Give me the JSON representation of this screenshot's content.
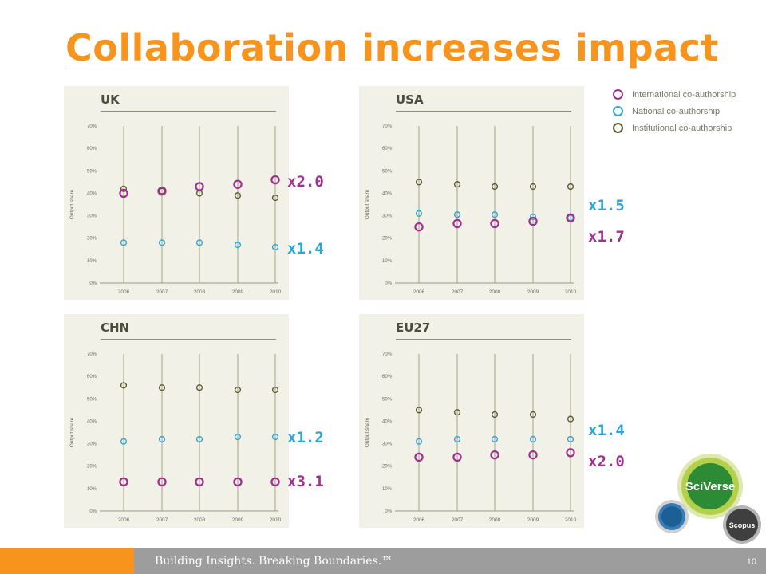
{
  "page": {
    "title": "Collaboration increases impact",
    "footer": "Building Insights. Breaking Boundaries.™",
    "page_number": "10"
  },
  "colors": {
    "international": "#a0308f",
    "national": "#29a7d6",
    "institutional": "#5f5a30",
    "accent": "#f7941d"
  },
  "legend": {
    "items": [
      {
        "label": "International co-authorship",
        "series": "international"
      },
      {
        "label": "National co-authorship",
        "series": "national"
      },
      {
        "label": "Institutional co-authorship",
        "series": "institutional"
      }
    ]
  },
  "logo": {
    "brand": "SciVerse",
    "sub": "Scopus",
    "colors": {
      "ring": "#b4cf49",
      "core": "#2d8a35",
      "blue": "#1a6aa0",
      "grey": "#888888",
      "dark": "#444444"
    }
  },
  "chart_data": [
    {
      "type": "scatter",
      "title": "UK",
      "ylabel": "Output share",
      "x": [
        "2006",
        "2007",
        "2008",
        "2009",
        "2010"
      ],
      "ylim": [
        0,
        70
      ],
      "yticks": [
        "0%",
        "10%",
        "20%",
        "30%",
        "40%",
        "50%",
        "60%",
        "70%"
      ],
      "series": [
        {
          "name": "International co-authorship",
          "key": "international",
          "values": [
            40,
            41,
            43,
            44,
            46
          ]
        },
        {
          "name": "National co-authorship",
          "key": "national",
          "values": [
            18,
            18,
            18,
            17,
            16
          ]
        },
        {
          "name": "Institutional co-authorship",
          "key": "institutional",
          "values": [
            42,
            41,
            40,
            39,
            38
          ]
        }
      ],
      "annotations": [
        {
          "text": "x2.0",
          "series": "international"
        },
        {
          "text": "x1.4",
          "series": "national"
        }
      ]
    },
    {
      "type": "scatter",
      "title": "USA",
      "ylabel": "Output share",
      "x": [
        "2006",
        "2007",
        "2008",
        "2009",
        "2010"
      ],
      "ylim": [
        0,
        70
      ],
      "yticks": [
        "0%",
        "10%",
        "20%",
        "30%",
        "40%",
        "50%",
        "60%",
        "70%"
      ],
      "series": [
        {
          "name": "International co-authorship",
          "key": "international",
          "values": [
            25,
            26.5,
            26.5,
            27.5,
            29
          ]
        },
        {
          "name": "National co-authorship",
          "key": "national",
          "values": [
            31,
            30.5,
            30.5,
            29.5,
            29
          ]
        },
        {
          "name": "Institutional co-authorship",
          "key": "institutional",
          "values": [
            45,
            44,
            43,
            43,
            43
          ]
        }
      ],
      "annotations": [
        {
          "text": "x1.5",
          "series": "national"
        },
        {
          "text": "x1.7",
          "series": "international"
        }
      ]
    },
    {
      "type": "scatter",
      "title": "CHN",
      "ylabel": "Output share",
      "x": [
        "2006",
        "2007",
        "2008",
        "2009",
        "2010"
      ],
      "ylim": [
        0,
        70
      ],
      "yticks": [
        "0%",
        "10%",
        "20%",
        "30%",
        "40%",
        "50%",
        "60%",
        "70%"
      ],
      "series": [
        {
          "name": "International co-authorship",
          "key": "international",
          "values": [
            13,
            13,
            13,
            13,
            13
          ]
        },
        {
          "name": "National co-authorship",
          "key": "national",
          "values": [
            31,
            32,
            32,
            33,
            33
          ]
        },
        {
          "name": "Institutional co-authorship",
          "key": "institutional",
          "values": [
            56,
            55,
            55,
            54,
            54
          ]
        }
      ],
      "annotations": [
        {
          "text": "x1.2",
          "series": "national"
        },
        {
          "text": "x3.1",
          "series": "international"
        }
      ]
    },
    {
      "type": "scatter",
      "title": "EU27",
      "ylabel": "Output share",
      "x": [
        "2006",
        "2007",
        "2008",
        "2009",
        "2010"
      ],
      "ylim": [
        0,
        70
      ],
      "yticks": [
        "0%",
        "10%",
        "20%",
        "30%",
        "40%",
        "50%",
        "60%",
        "70%"
      ],
      "series": [
        {
          "name": "International co-authorship",
          "key": "international",
          "values": [
            24,
            24,
            25,
            25,
            26
          ]
        },
        {
          "name": "National co-authorship",
          "key": "national",
          "values": [
            31,
            32,
            32,
            32,
            32
          ]
        },
        {
          "name": "Institutional co-authorship",
          "key": "institutional",
          "values": [
            45,
            44,
            43,
            43,
            41
          ]
        }
      ],
      "annotations": [
        {
          "text": "x1.4",
          "series": "national"
        },
        {
          "text": "x2.0",
          "series": "international"
        }
      ]
    }
  ]
}
